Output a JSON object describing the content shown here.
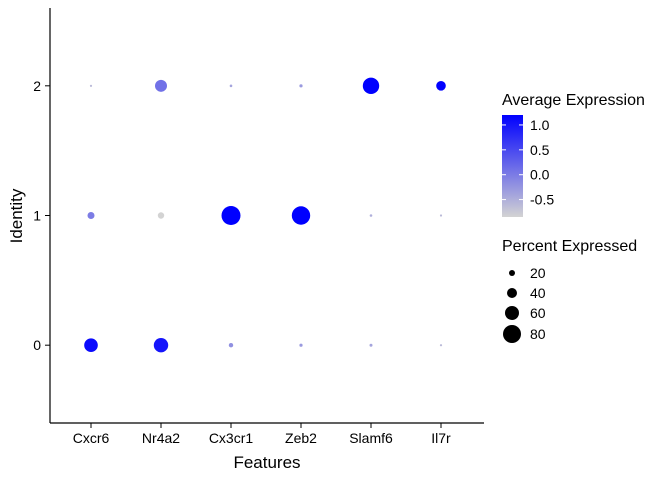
{
  "chart_data": {
    "type": "dotplot",
    "title": "",
    "xlabel": "Features",
    "ylabel": "Identity",
    "categories": [
      "Cxcr6",
      "Nr4a2",
      "Cx3cr1",
      "Zeb2",
      "Slamf6",
      "Il7r"
    ],
    "identities": [
      "0",
      "1",
      "2"
    ],
    "ylim": [
      -0.6,
      2.6
    ],
    "grid": false,
    "legend_position": "right",
    "color_scale": {
      "title": "Average Expression",
      "low_color": "#d3d3d3",
      "high_color": "#0000ff",
      "range": [
        -0.85,
        1.2
      ],
      "breaks": [
        1.0,
        0.5,
        0.0,
        -0.5
      ],
      "break_labels": [
        "1.0",
        "0.5",
        "0.0",
        "-0.5"
      ]
    },
    "size_scale": {
      "title": "Percent Expressed",
      "breaks": [
        20,
        40,
        60,
        80
      ],
      "break_labels": [
        "20",
        "40",
        "60",
        "80"
      ]
    },
    "points": [
      {
        "feature": "Cxcr6",
        "identity": "0",
        "pct": 58,
        "avg_exp": 1.1
      },
      {
        "feature": "Nr4a2",
        "identity": "0",
        "pct": 62,
        "avg_exp": 1.0
      },
      {
        "feature": "Cx3cr1",
        "identity": "0",
        "pct": 12,
        "avg_exp": -0.2
      },
      {
        "feature": "Zeb2",
        "identity": "0",
        "pct": 6,
        "avg_exp": -0.3
      },
      {
        "feature": "Slamf6",
        "identity": "0",
        "pct": 5,
        "avg_exp": -0.4
      },
      {
        "feature": "Il7r",
        "identity": "0",
        "pct": 1,
        "avg_exp": -0.6
      },
      {
        "feature": "Cxcr6",
        "identity": "1",
        "pct": 25,
        "avg_exp": 0.0
      },
      {
        "feature": "Nr4a2",
        "identity": "1",
        "pct": 22,
        "avg_exp": -0.85
      },
      {
        "feature": "Cx3cr1",
        "identity": "1",
        "pct": 85,
        "avg_exp": 1.2
      },
      {
        "feature": "Zeb2",
        "identity": "1",
        "pct": 82,
        "avg_exp": 1.2
      },
      {
        "feature": "Slamf6",
        "identity": "1",
        "pct": 3,
        "avg_exp": -0.5
      },
      {
        "feature": "Il7r",
        "identity": "1",
        "pct": 1,
        "avg_exp": -0.6
      },
      {
        "feature": "Cxcr6",
        "identity": "2",
        "pct": 1,
        "avg_exp": -0.6
      },
      {
        "feature": "Nr4a2",
        "identity": "2",
        "pct": 50,
        "avg_exp": 0.1
      },
      {
        "feature": "Cx3cr1",
        "identity": "2",
        "pct": 3,
        "avg_exp": -0.4
      },
      {
        "feature": "Zeb2",
        "identity": "2",
        "pct": 6,
        "avg_exp": -0.3
      },
      {
        "feature": "Slamf6",
        "identity": "2",
        "pct": 72,
        "avg_exp": 1.2
      },
      {
        "feature": "Il7r",
        "identity": "2",
        "pct": 38,
        "avg_exp": 1.2
      }
    ]
  }
}
